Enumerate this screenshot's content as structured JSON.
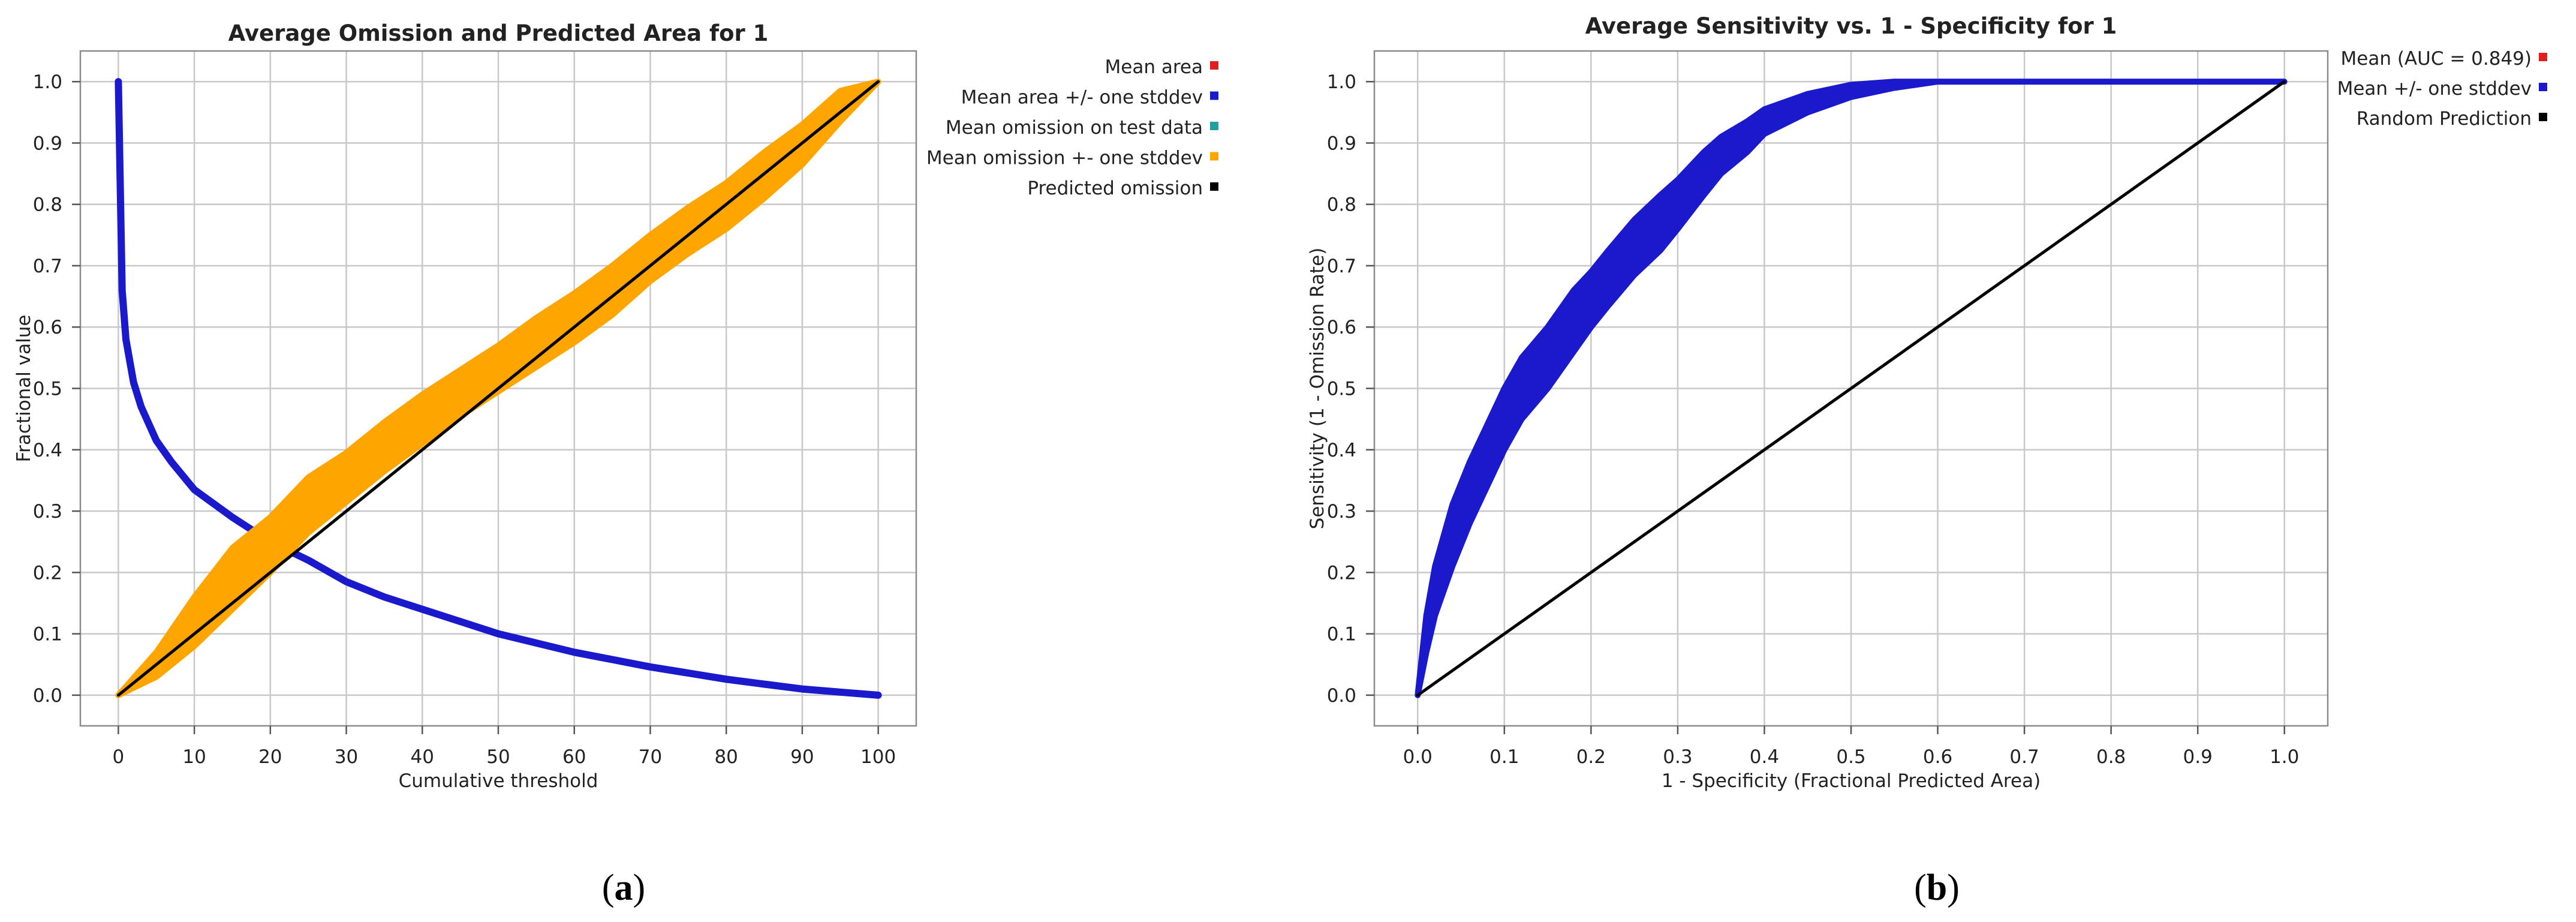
{
  "chart_data": [
    {
      "type": "line",
      "panel_label": "(a)",
      "panel_letter": "a",
      "title": "Average Omission and Predicted Area for 1",
      "xlabel": "Cumulative threshold",
      "ylabel": "Fractional value",
      "xlim": [
        -5,
        105
      ],
      "ylim": [
        -0.05,
        1.05
      ],
      "xticks": [
        0,
        10,
        20,
        30,
        40,
        50,
        60,
        70,
        80,
        90,
        100
      ],
      "yticks": [
        0.0,
        0.1,
        0.2,
        0.3,
        0.4,
        0.5,
        0.6,
        0.7,
        0.8,
        0.9,
        1.0
      ],
      "grid": true,
      "legend_position": "outside-right",
      "legend": [
        {
          "label": "Mean area",
          "color": "#e02020"
        },
        {
          "label": "Mean area +/- one stddev",
          "color": "#1a1acc"
        },
        {
          "label": "Mean omission on test data",
          "color": "#20a0a0"
        },
        {
          "label": "Mean omission +- one stddev",
          "color": "#ffa500"
        },
        {
          "label": "Predicted omission",
          "color": "#000000"
        }
      ],
      "series": [
        {
          "name": "Mean area",
          "color": "#9c1f6e",
          "x": [
            0,
            0.5,
            1,
            2,
            3,
            5,
            7,
            10,
            15,
            20,
            25,
            30,
            35,
            40,
            45,
            50,
            55,
            60,
            65,
            70,
            75,
            80,
            85,
            90,
            95,
            100
          ],
          "y": [
            1.0,
            0.66,
            0.58,
            0.51,
            0.47,
            0.415,
            0.38,
            0.335,
            0.29,
            0.25,
            0.22,
            0.185,
            0.16,
            0.14,
            0.12,
            0.1,
            0.085,
            0.07,
            0.058,
            0.046,
            0.036,
            0.026,
            0.018,
            0.01,
            0.005,
            0.0
          ]
        },
        {
          "name": "Mean area +/- one stddev",
          "color": "#1a1acc",
          "x": [
            0,
            0.5,
            1,
            2,
            3,
            5,
            7,
            10,
            15,
            20,
            25,
            30,
            35,
            40,
            45,
            50,
            55,
            60,
            65,
            70,
            75,
            80,
            85,
            90,
            95,
            100
          ],
          "y": [
            1.0,
            0.66,
            0.58,
            0.51,
            0.47,
            0.415,
            0.38,
            0.335,
            0.29,
            0.25,
            0.22,
            0.185,
            0.16,
            0.14,
            0.12,
            0.1,
            0.085,
            0.07,
            0.058,
            0.046,
            0.036,
            0.026,
            0.018,
            0.01,
            0.005,
            0.0
          ]
        },
        {
          "name": "Mean omission on test data",
          "color": "#20a0a0",
          "x": [
            0,
            5,
            10,
            15,
            20,
            25,
            30,
            35,
            40,
            45,
            50,
            55,
            60,
            65,
            70,
            75,
            80,
            85,
            90,
            95,
            100
          ],
          "y": [
            0.0,
            0.05,
            0.12,
            0.19,
            0.245,
            0.31,
            0.355,
            0.405,
            0.45,
            0.49,
            0.53,
            0.575,
            0.615,
            0.655,
            0.71,
            0.755,
            0.795,
            0.845,
            0.895,
            0.955,
            1.0
          ]
        },
        {
          "name": "Mean omission +- one stddev",
          "color": "#ffa500",
          "x": [
            0,
            5,
            10,
            15,
            20,
            25,
            30,
            35,
            40,
            45,
            50,
            55,
            60,
            65,
            70,
            75,
            80,
            85,
            90,
            95,
            100
          ],
          "y_low": [
            0.0,
            0.03,
            0.08,
            0.14,
            0.2,
            0.265,
            0.315,
            0.365,
            0.41,
            0.455,
            0.495,
            0.535,
            0.575,
            0.62,
            0.675,
            0.72,
            0.76,
            0.81,
            0.865,
            0.935,
            1.0
          ],
          "y_high": [
            0.0,
            0.07,
            0.16,
            0.24,
            0.29,
            0.355,
            0.395,
            0.445,
            0.49,
            0.53,
            0.57,
            0.615,
            0.655,
            0.7,
            0.75,
            0.795,
            0.835,
            0.885,
            0.93,
            0.985,
            1.0
          ]
        },
        {
          "name": "Predicted omission",
          "color": "#000000",
          "x": [
            0,
            100
          ],
          "y": [
            0,
            1
          ]
        }
      ]
    },
    {
      "type": "line",
      "panel_label": "(b)",
      "panel_letter": "b",
      "title": "Average Sensitivity vs. 1 - Specificity for 1",
      "xlabel": "1 - Specificity (Fractional Predicted Area)",
      "ylabel": "Sensitivity (1 - Omission Rate)",
      "xlim": [
        -0.05,
        1.05
      ],
      "ylim": [
        -0.05,
        1.05
      ],
      "xticks": [
        0.0,
        0.1,
        0.2,
        0.3,
        0.4,
        0.5,
        0.6,
        0.7,
        0.8,
        0.9,
        1.0
      ],
      "yticks": [
        0.0,
        0.1,
        0.2,
        0.3,
        0.4,
        0.5,
        0.6,
        0.7,
        0.8,
        0.9,
        1.0
      ],
      "grid": true,
      "legend_position": "outside-right",
      "legend": [
        {
          "label": "Mean (AUC = 0.849)",
          "color": "#e02020"
        },
        {
          "label": "Mean +/- one stddev",
          "color": "#1a1acc"
        },
        {
          "label": "Random Prediction",
          "color": "#000000"
        }
      ],
      "series": [
        {
          "name": "Mean (AUC = 0.849)",
          "color": "#e02020",
          "x": [
            0,
            0.01,
            0.02,
            0.04,
            0.06,
            0.08,
            0.1,
            0.12,
            0.15,
            0.18,
            0.2,
            0.22,
            0.25,
            0.28,
            0.3,
            0.33,
            0.35,
            0.38,
            0.4,
            0.45,
            0.5,
            0.55,
            0.6,
            0.7,
            0.8,
            0.9,
            1.0
          ],
          "y": [
            0,
            0.1,
            0.17,
            0.26,
            0.33,
            0.39,
            0.45,
            0.5,
            0.55,
            0.61,
            0.645,
            0.68,
            0.73,
            0.77,
            0.8,
            0.85,
            0.88,
            0.91,
            0.935,
            0.965,
            0.985,
            0.995,
            1.0,
            1.0,
            1.0,
            1.0,
            1.0
          ]
        },
        {
          "name": "Mean +/- one stddev",
          "color": "#1a1acc",
          "x": [
            0,
            0.01,
            0.02,
            0.04,
            0.06,
            0.08,
            0.1,
            0.12,
            0.15,
            0.18,
            0.2,
            0.22,
            0.25,
            0.28,
            0.3,
            0.33,
            0.35,
            0.38,
            0.4,
            0.45,
            0.5,
            0.55,
            0.6,
            0.7,
            0.8,
            0.9,
            1.0
          ],
          "y_low": [
            0,
            0.07,
            0.13,
            0.21,
            0.28,
            0.34,
            0.4,
            0.45,
            0.5,
            0.56,
            0.6,
            0.635,
            0.685,
            0.725,
            0.76,
            0.815,
            0.85,
            0.885,
            0.915,
            0.95,
            0.975,
            0.99,
            1.0,
            1.0,
            1.0,
            1.0,
            1.0
          ],
          "y_high": [
            0,
            0.13,
            0.21,
            0.31,
            0.38,
            0.44,
            0.5,
            0.55,
            0.6,
            0.66,
            0.69,
            0.725,
            0.775,
            0.815,
            0.84,
            0.885,
            0.91,
            0.935,
            0.955,
            0.98,
            0.995,
            1.0,
            1.0,
            1.0,
            1.0,
            1.0,
            1.0
          ]
        },
        {
          "name": "Random Prediction",
          "color": "#000000",
          "x": [
            0,
            1
          ],
          "y": [
            0,
            1
          ]
        }
      ]
    }
  ]
}
